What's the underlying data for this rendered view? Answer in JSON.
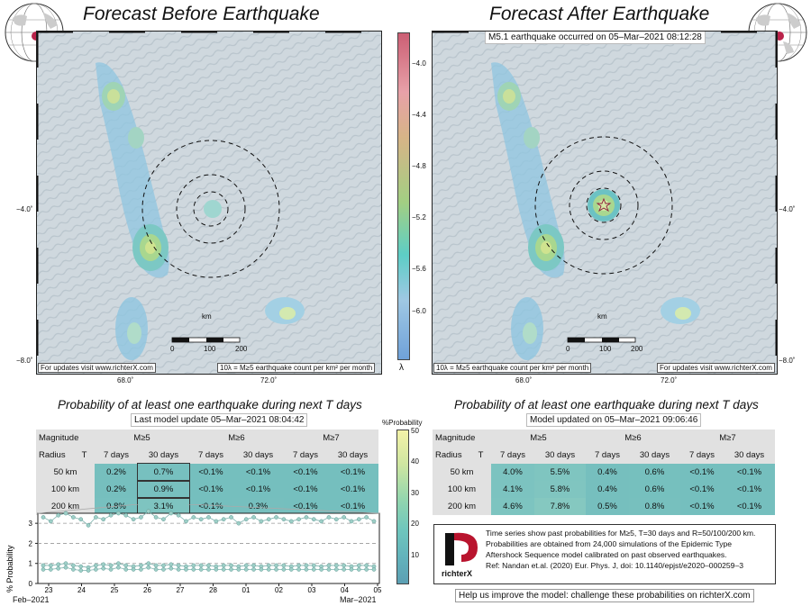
{
  "left_title": "Forecast Before Earthquake",
  "right_title": "Forecast After Earthquake",
  "eq_label": "M5.1 earthquake occurred on 05–Mar–2021 08:12:28",
  "map_left": {
    "footer_left": "For updates visit www.richterX.com",
    "footer_right": "10λ = M≥5 earthquake count per km² per month",
    "km_label": "km",
    "scale_ticks": [
      "0",
      "100",
      "200"
    ],
    "lat_tick": "−4.0˚",
    "lat_tick2": "−8.0˚",
    "lon_ticks": [
      "68.0˚",
      "72.0˚"
    ]
  },
  "map_right": {
    "footer_left": "10λ = M≥5 earthquake count per km² per month",
    "footer_right": "For updates visit www.richterX.com",
    "km_label": "km",
    "scale_ticks": [
      "0",
      "100",
      "200"
    ],
    "lat_tick": "−4.0˚",
    "lat_tick2": "−8.0˚",
    "lon_ticks": [
      "68.0˚",
      "72.0˚"
    ]
  },
  "colorbar": {
    "ticks": [
      "−4.0",
      "−4.4",
      "−4.8",
      "−5.2",
      "−5.6",
      "−6.0"
    ],
    "symbol": "λ",
    "colors": [
      "#cc5e74",
      "#e7a1a8",
      "#d7b487",
      "#a2cf83",
      "#5dcdc6",
      "#9fc8e3",
      "#6fa1d9"
    ]
  },
  "left_table": {
    "title": "Probability of at least one earthquake during next T days",
    "update": "Last model update 05–Mar–2021 08:04:42",
    "hdr_magnitude": "Magnitude",
    "hdr_radius": "Radius",
    "hdr_T": "T",
    "mags": [
      "M≥5",
      "M≥6",
      "M≥7"
    ],
    "periods": [
      "7 days",
      "30 days",
      "7 days",
      "30 days",
      "7 days",
      "30 days"
    ],
    "rows": [
      {
        "radius": "50 km",
        "values": [
          "0.2%",
          "0.7%",
          "<0.1%",
          "<0.1%",
          "<0.1%",
          "<0.1%"
        ]
      },
      {
        "radius": "100 km",
        "values": [
          "0.2%",
          "0.9%",
          "<0.1%",
          "<0.1%",
          "<0.1%",
          "<0.1%"
        ]
      },
      {
        "radius": "200 km",
        "values": [
          "0.8%",
          "3.1%",
          "<0.1%",
          "0.3%",
          "<0.1%",
          "<0.1%"
        ]
      }
    ]
  },
  "right_table": {
    "title": "Probability of at least one earthquake during next T days",
    "update": "Model updated on 05–Mar–2021 09:06:46",
    "hdr_magnitude": "Magnitude",
    "hdr_radius": "Radius",
    "hdr_T": "T",
    "mags": [
      "M≥5",
      "M≥6",
      "M≥7"
    ],
    "periods": [
      "7 days",
      "30 days",
      "7 days",
      "30 days",
      "7 days",
      "30 days"
    ],
    "rows": [
      {
        "radius": "50 km",
        "values": [
          "4.0%",
          "5.5%",
          "0.4%",
          "0.6%",
          "<0.1%",
          "<0.1%"
        ]
      },
      {
        "radius": "100 km",
        "values": [
          "4.1%",
          "5.8%",
          "0.4%",
          "0.6%",
          "<0.1%",
          "<0.1%"
        ]
      },
      {
        "radius": "200 km",
        "values": [
          "4.6%",
          "7.8%",
          "0.5%",
          "0.8%",
          "<0.1%",
          "<0.1%"
        ]
      }
    ]
  },
  "prob_colorbar": {
    "title": "%Probability",
    "ticks": [
      "50",
      "40",
      "30",
      "20",
      "10"
    ],
    "colors": [
      "#f4f2a8",
      "#cfe6a1",
      "#93d6ae",
      "#6fc6bd",
      "#63b4bc",
      "#5c9fb3"
    ]
  },
  "chart_data": {
    "type": "scatter",
    "title": "",
    "ylabel": "% Probability",
    "ylim": [
      0,
      3.5
    ],
    "yticks": [
      "0",
      "1",
      "2",
      "3"
    ],
    "xticks": [
      "23",
      "24",
      "25",
      "26",
      "27",
      "28",
      "01",
      "02",
      "03",
      "04",
      "05"
    ],
    "month_labels": [
      "Feb–2021",
      "Mar–2021"
    ],
    "dashed_lines": [
      1,
      2,
      3
    ],
    "series": [
      {
        "values": [
          3.3,
          3.1,
          3.4,
          3.5,
          3.3,
          3.2,
          2.9,
          3.3,
          3.2,
          3.4,
          3.5,
          3.4,
          3.2,
          3.3,
          3.6,
          3.3,
          3.2,
          3.5,
          3.4,
          3.1,
          3.3,
          3.2,
          3.3,
          3.1,
          3.2,
          3.3,
          3.0,
          3.2,
          3.3,
          3.1,
          3.2,
          3.3,
          3.2,
          3.1,
          3.2,
          3.3,
          3.2,
          3.1,
          3.3,
          3.2,
          3.3,
          3.1,
          3.2,
          3.3,
          3.1
        ]
      },
      {
        "values": [
          0.9,
          0.9,
          0.95,
          1.0,
          0.9,
          0.85,
          0.8,
          0.9,
          0.95,
          0.9,
          1.0,
          0.9,
          0.85,
          0.9,
          1.0,
          0.9,
          0.9,
          0.95,
          0.9,
          0.85,
          0.9,
          0.9,
          0.9,
          0.85,
          0.9,
          0.9,
          0.85,
          0.9,
          0.9,
          0.85,
          0.9,
          0.9,
          0.9,
          0.85,
          0.9,
          0.9,
          0.9,
          0.85,
          0.9,
          0.9,
          0.9,
          0.85,
          0.9,
          0.9,
          0.85
        ]
      },
      {
        "values": [
          0.7,
          0.7,
          0.75,
          0.8,
          0.7,
          0.65,
          0.65,
          0.7,
          0.75,
          0.7,
          0.8,
          0.7,
          0.7,
          0.7,
          0.8,
          0.7,
          0.7,
          0.75,
          0.7,
          0.7,
          0.7,
          0.7,
          0.7,
          0.7,
          0.7,
          0.7,
          0.7,
          0.7,
          0.7,
          0.7,
          0.7,
          0.7,
          0.7,
          0.7,
          0.7,
          0.7,
          0.7,
          0.7,
          0.7,
          0.7,
          0.7,
          0.7,
          0.7,
          0.7,
          0.7
        ]
      }
    ]
  },
  "info": {
    "logo_text": "richterX",
    "lines": [
      "Time series show past probabilities for M≥5, T=30 days and R=50/100/200 km.",
      "Probabilities are obtained from 24,000 simulations of the Epidemic Type",
      "Aftershock Sequence model calibrated on past observed earthquakes.",
      "Ref: Nandan et.al. (2020) Eur. Phys. J, doi: 10.1140/epjst/e2020–000259–3"
    ],
    "footer": "Help us improve the model: challenge these probabilities on richterX.com"
  }
}
